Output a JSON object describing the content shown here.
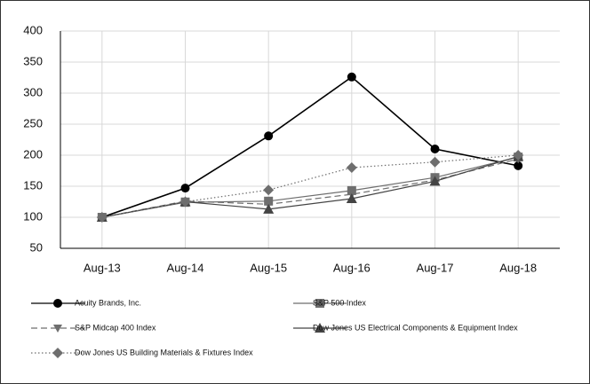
{
  "chart_data": {
    "type": "line",
    "categories": [
      "Aug-13",
      "Aug-14",
      "Aug-15",
      "Aug-16",
      "Aug-17",
      "Aug-18"
    ],
    "ylim": [
      50,
      400
    ],
    "yticks": [
      50,
      100,
      150,
      200,
      250,
      300,
      350,
      400
    ],
    "grid": true,
    "series": [
      {
        "name": "Acuity Brands, Inc.",
        "color": "#000000",
        "line_style": "solid",
        "marker": "circle",
        "values": [
          100,
          147,
          231,
          326,
          210,
          183
        ]
      },
      {
        "name": "S&P 500 Index",
        "color": "#6e6e6e",
        "line_style": "solid",
        "marker": "square",
        "values": [
          100,
          124,
          126,
          143,
          164,
          197
        ]
      },
      {
        "name": "S&P Midcap 400 Index",
        "color": "#6e6e6e",
        "line_style": "dashed",
        "marker": "triangle-down",
        "values": [
          100,
          126,
          121,
          137,
          160,
          194
        ]
      },
      {
        "name": "Dow Jones US Electrical Components & Equipment Index",
        "color": "#444444",
        "line_style": "solid",
        "marker": "triangle-up",
        "values": [
          100,
          125,
          113,
          130,
          158,
          198
        ]
      },
      {
        "name": "Dow Jones US Building Materials & Fixtures Index",
        "color": "#6e6e6e",
        "line_style": "dotted",
        "marker": "diamond",
        "values": [
          100,
          125,
          144,
          180,
          189,
          200
        ]
      }
    ]
  }
}
